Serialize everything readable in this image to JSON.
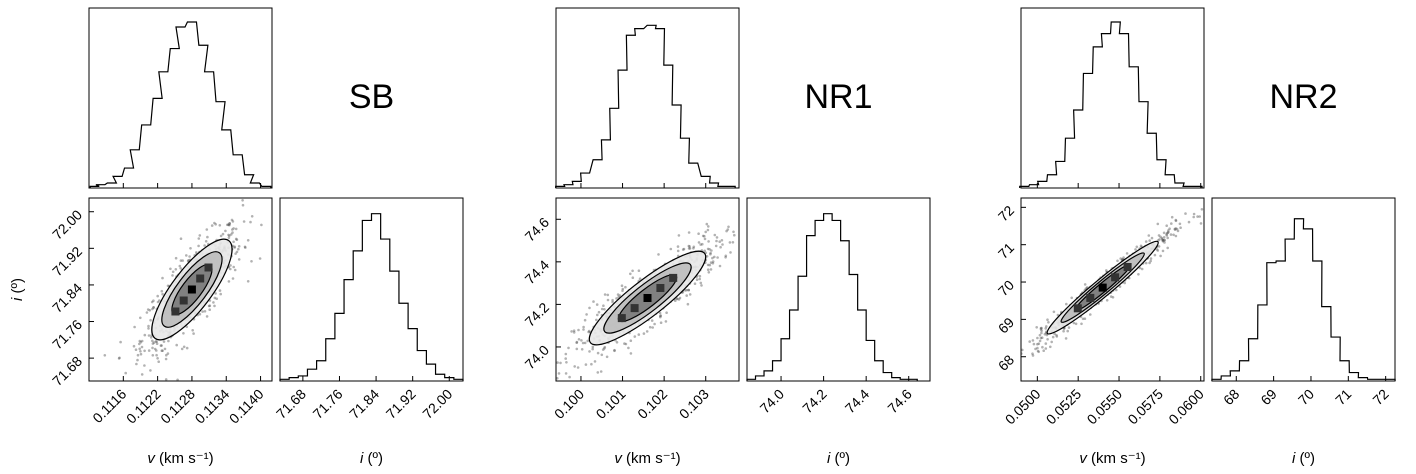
{
  "chart_data": [
    {
      "type": "corner",
      "title": "SB",
      "params": {
        "x": {
          "label": "v (km s⁻¹)",
          "range": [
            0.111,
            0.1142
          ],
          "ticks": [
            "0.1116",
            "0.1122",
            "0.1128",
            "0.1134",
            "0.1140"
          ]
        },
        "y": {
          "label": "i (º)",
          "range": [
            71.63,
            72.03
          ],
          "ticks": [
            "71.68",
            "71.76",
            "71.84",
            "71.92",
            "72.00"
          ]
        }
      },
      "hist_x": {
        "bin_centers": [
          0.1111,
          0.1112,
          0.1114,
          0.1115,
          0.1117,
          0.1118,
          0.112,
          0.1122,
          0.1123,
          0.1125,
          0.1126,
          0.1128,
          0.113,
          0.1131,
          0.1133,
          0.1134,
          0.1136,
          0.1138,
          0.1139,
          0.1141
        ],
        "counts": [
          0.01,
          0.02,
          0.03,
          0.07,
          0.12,
          0.23,
          0.38,
          0.54,
          0.7,
          0.84,
          0.97,
          1.0,
          0.86,
          0.7,
          0.52,
          0.35,
          0.2,
          0.08,
          0.03,
          0.01
        ]
      },
      "hist_y": {
        "bin_centers": [
          71.64,
          71.66,
          71.68,
          71.7,
          71.72,
          71.74,
          71.76,
          71.78,
          71.8,
          71.82,
          71.84,
          71.86,
          71.88,
          71.9,
          71.92,
          71.94,
          71.96,
          71.98,
          72.0,
          72.02
        ],
        "counts": [
          0.01,
          0.02,
          0.03,
          0.07,
          0.12,
          0.25,
          0.4,
          0.6,
          0.77,
          0.95,
          0.99,
          0.84,
          0.65,
          0.46,
          0.31,
          0.18,
          0.1,
          0.04,
          0.02,
          0.01
        ]
      },
      "joint": {
        "center": [
          0.1128,
          71.83
        ],
        "sigma": [
          0.00035,
          0.055
        ],
        "corr": 0.8
      }
    },
    {
      "type": "corner",
      "title": "NR1",
      "params": {
        "x": {
          "label": "v (km s⁻¹)",
          "range": [
            0.0994,
            0.1038
          ],
          "ticks": [
            "0.100",
            "0.101",
            "0.102",
            "0.103"
          ]
        },
        "y": {
          "label": "i (º)",
          "range": [
            73.84,
            74.7
          ],
          "ticks": [
            "74.0",
            "74.2",
            "74.4",
            "74.6"
          ]
        }
      },
      "hist_x": {
        "bin_centers": [
          0.0995,
          0.0997,
          0.0999,
          0.1001,
          0.1004,
          0.1006,
          0.1008,
          0.101,
          0.1012,
          0.1014,
          0.1017,
          0.1019,
          0.1021,
          0.1023,
          0.1025,
          0.1027,
          0.103,
          0.1032,
          0.1034,
          0.1036
        ],
        "counts": [
          0.01,
          0.02,
          0.04,
          0.09,
          0.17,
          0.29,
          0.48,
          0.71,
          0.92,
          0.96,
          0.98,
          0.96,
          0.74,
          0.5,
          0.3,
          0.15,
          0.07,
          0.03,
          0.01,
          0.01
        ]
      },
      "hist_y": {
        "bin_centers": [
          73.86,
          73.9,
          73.94,
          73.98,
          74.02,
          74.06,
          74.1,
          74.14,
          74.18,
          74.22,
          74.26,
          74.3,
          74.34,
          74.38,
          74.42,
          74.46,
          74.5,
          74.54,
          74.58,
          74.62
        ],
        "counts": [
          0.01,
          0.03,
          0.06,
          0.12,
          0.25,
          0.42,
          0.62,
          0.86,
          0.95,
          0.99,
          0.95,
          0.83,
          0.63,
          0.42,
          0.24,
          0.12,
          0.05,
          0.02,
          0.01,
          0.01
        ]
      },
      "joint": {
        "center": [
          0.1016,
          74.23
        ],
        "sigma": [
          0.0007,
          0.11
        ],
        "corr": 0.88
      }
    },
    {
      "type": "corner",
      "title": "NR2",
      "params": {
        "x": {
          "label": "v (km s⁻¹)",
          "range": [
            0.049,
            0.0602
          ],
          "ticks": [
            "0.0500",
            "0.0525",
            "0.0550",
            "0.0575",
            "0.0600"
          ]
        },
        "y": {
          "label": "i (º)",
          "range": [
            67.35,
            72.25
          ],
          "ticks": [
            "68",
            "69",
            "70",
            "71",
            "72"
          ]
        }
      },
      "hist_x": {
        "bin_centers": [
          0.0492,
          0.0498,
          0.0503,
          0.0509,
          0.0514,
          0.052,
          0.0525,
          0.0531,
          0.0537,
          0.0542,
          0.0548,
          0.0553,
          0.0559,
          0.0565,
          0.057,
          0.0576,
          0.0581,
          0.0587,
          0.0592,
          0.0598
        ],
        "counts": [
          0.01,
          0.02,
          0.04,
          0.08,
          0.16,
          0.3,
          0.47,
          0.69,
          0.85,
          0.93,
          1.0,
          0.93,
          0.73,
          0.52,
          0.33,
          0.17,
          0.08,
          0.03,
          0.01,
          0.01
        ]
      },
      "hist_y": {
        "bin_centers": [
          67.47,
          67.72,
          67.96,
          68.21,
          68.45,
          68.7,
          68.94,
          69.19,
          69.43,
          69.68,
          69.92,
          70.17,
          70.41,
          70.66,
          70.9,
          71.15,
          71.39,
          71.64,
          71.88,
          72.13
        ],
        "counts": [
          0.01,
          0.03,
          0.06,
          0.12,
          0.25,
          0.45,
          0.7,
          0.71,
          0.84,
          0.96,
          0.9,
          0.71,
          0.44,
          0.26,
          0.12,
          0.05,
          0.02,
          0.01,
          0.01,
          0.01
        ]
      },
      "joint": {
        "center": [
          0.054,
          69.85
        ],
        "sigma": [
          0.0017,
          0.62
        ],
        "corr": 0.97
      }
    }
  ]
}
